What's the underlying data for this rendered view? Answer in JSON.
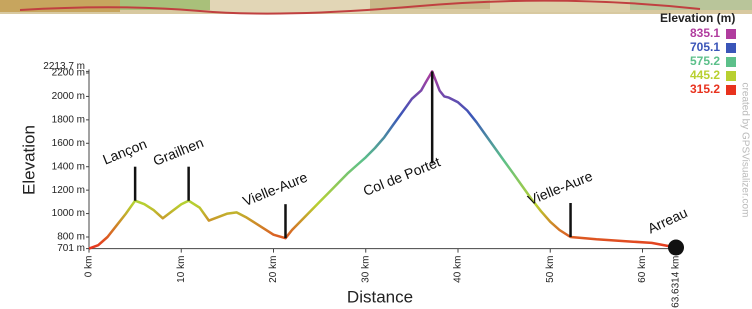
{
  "chart_data": {
    "type": "line",
    "x_label": "Distance",
    "y_label": "Elevation",
    "x": [
      0,
      1,
      2,
      3,
      4,
      5,
      6,
      7,
      8,
      9,
      10,
      10.8,
      12,
      13,
      14,
      15,
      16,
      17,
      18,
      19,
      20,
      21.3,
      22,
      23,
      24,
      25,
      26,
      27,
      28,
      29,
      30,
      31,
      32,
      33,
      34,
      35,
      36,
      36.5,
      37.2,
      38,
      38.5,
      39,
      40,
      41,
      42,
      43,
      44,
      45,
      46,
      47,
      48,
      49,
      50,
      51,
      52.2,
      53,
      55,
      57,
      59,
      61,
      62,
      63.6314
    ],
    "values": [
      701,
      730,
      800,
      900,
      1000,
      1110,
      1080,
      1030,
      960,
      1020,
      1080,
      1110,
      1050,
      940,
      970,
      1000,
      1010,
      970,
      920,
      870,
      820,
      790,
      860,
      940,
      1020,
      1100,
      1180,
      1260,
      1340,
      1410,
      1480,
      1560,
      1650,
      1760,
      1870,
      1980,
      2050,
      2120,
      2213.7,
      2050,
      2000,
      1990,
      1950,
      1880,
      1780,
      1670,
      1560,
      1450,
      1340,
      1230,
      1120,
      1020,
      930,
      860,
      800,
      795,
      780,
      770,
      760,
      750,
      735,
      710
    ],
    "xlim": [
      0,
      63.6314
    ],
    "ylim": [
      701,
      2213.7
    ],
    "xticks": [
      {
        "value": 0,
        "label": "0 km"
      },
      {
        "value": 10,
        "label": "10 km"
      },
      {
        "value": 20,
        "label": "20 km"
      },
      {
        "value": 30,
        "label": "30 km"
      },
      {
        "value": 40,
        "label": "40 km"
      },
      {
        "value": 50,
        "label": "50 km"
      },
      {
        "value": 60,
        "label": "60 km"
      },
      {
        "value": 63.6314,
        "label": "63.6314 km"
      }
    ],
    "yticks": [
      {
        "value": 701,
        "label": "701 m"
      },
      {
        "value": 800,
        "label": "800 m"
      },
      {
        "value": 1000,
        "label": "1000 m"
      },
      {
        "value": 1200,
        "label": "1200 m"
      },
      {
        "value": 1400,
        "label": "1400 m"
      },
      {
        "value": 1600,
        "label": "1600 m"
      },
      {
        "value": 1800,
        "label": "1800 m"
      },
      {
        "value": 2000,
        "label": "2000 m"
      },
      {
        "value": 2200,
        "label": "2200 m"
      },
      {
        "value": 2213.7,
        "label": "2213.7 m"
      }
    ],
    "waypoints": [
      {
        "label": "Lançon",
        "x": 5
      },
      {
        "label": "Grailhen",
        "x": 10.8
      },
      {
        "label": "Vielle-Aure",
        "x": 21.3
      },
      {
        "label": "Col de Portet",
        "x": 37.2
      },
      {
        "label": "Vielle-Aure",
        "x": 52.2
      },
      {
        "label": "Arreau",
        "x": 63.6314
      }
    ],
    "legend": {
      "title": "Elevation (m)",
      "items": [
        {
          "value": 835.1,
          "color": "#b03c9e"
        },
        {
          "value": 705.1,
          "color": "#3a55b8"
        },
        {
          "value": 575.2,
          "color": "#5cc08a"
        },
        {
          "value": 445.2,
          "color": "#b8d030"
        },
        {
          "value": 315.2,
          "color": "#e8321e"
        }
      ]
    },
    "credit": "created by GPSVisualizer.com"
  }
}
